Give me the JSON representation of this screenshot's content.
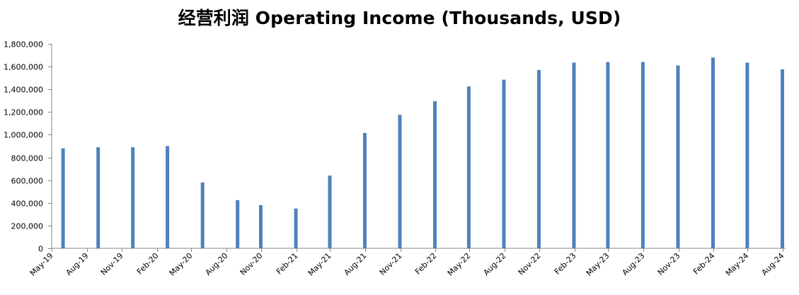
{
  "chart_data": {
    "type": "bar",
    "title": "经营利润 Operating Income (Thousands, USD)",
    "xlabel": "",
    "ylabel": "",
    "ylim": [
      0,
      1800000
    ],
    "yticks": [
      0,
      200000,
      400000,
      600000,
      800000,
      1000000,
      1200000,
      1400000,
      1600000,
      1800000
    ],
    "ytick_labels": [
      "0",
      "200,000",
      "400,000",
      "600,000",
      "800,000",
      "1,000,000",
      "1,200,000",
      "1,400,000",
      "1,600,000",
      "1,800,000"
    ],
    "x_tick_labels": [
      "May-19",
      "Aug-19",
      "Nov-19",
      "Feb-20",
      "May-20",
      "Aug-20",
      "Nov-20",
      "Feb-21",
      "May-21",
      "Aug-21",
      "Nov-21",
      "Feb-22",
      "May-22",
      "Aug-22",
      "Nov-22",
      "Feb-23",
      "May-23",
      "Aug-23",
      "Nov-23",
      "Feb-24",
      "May-24",
      "Aug-24"
    ],
    "bars": [
      {
        "date": "2019-05-31",
        "value": 880000
      },
      {
        "date": "2019-08-31",
        "value": 890000
      },
      {
        "date": "2019-11-30",
        "value": 890000
      },
      {
        "date": "2020-02-29",
        "value": 900000
      },
      {
        "date": "2020-05-31",
        "value": 580000
      },
      {
        "date": "2020-08-31",
        "value": 425000
      },
      {
        "date": "2020-10-31",
        "value": 380000
      },
      {
        "date": "2021-01-31",
        "value": 350000
      },
      {
        "date": "2021-04-30",
        "value": 640000
      },
      {
        "date": "2021-07-31",
        "value": 1015000
      },
      {
        "date": "2021-10-31",
        "value": 1175000
      },
      {
        "date": "2022-01-31",
        "value": 1295000
      },
      {
        "date": "2022-04-30",
        "value": 1425000
      },
      {
        "date": "2022-07-31",
        "value": 1485000
      },
      {
        "date": "2022-10-31",
        "value": 1570000
      },
      {
        "date": "2023-01-31",
        "value": 1635000
      },
      {
        "date": "2023-04-30",
        "value": 1640000
      },
      {
        "date": "2023-07-31",
        "value": 1640000
      },
      {
        "date": "2023-10-31",
        "value": 1610000
      },
      {
        "date": "2024-01-31",
        "value": 1680000
      },
      {
        "date": "2024-04-30",
        "value": 1635000
      },
      {
        "date": "2024-07-31",
        "value": 1575000
      }
    ],
    "bar_color": "#4f81bd",
    "grid": false,
    "legend": "none"
  }
}
